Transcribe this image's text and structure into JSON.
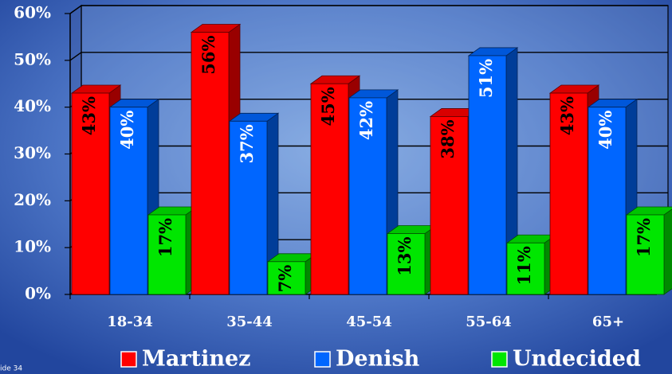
{
  "chart_data": {
    "type": "bar",
    "categories": [
      "18-34",
      "35-44",
      "45-54",
      "55-64",
      "65+"
    ],
    "series": [
      {
        "name": "Martinez",
        "color": "#ff0000",
        "values": [
          43,
          56,
          45,
          38,
          43
        ],
        "value_labels": [
          "43%",
          "56%",
          "45%",
          "38%",
          "43%"
        ]
      },
      {
        "name": "Denish",
        "color": "#0066ff",
        "values": [
          40,
          37,
          42,
          51,
          40
        ],
        "value_labels": [
          "40%",
          "37%",
          "42%",
          "51%",
          "40%"
        ]
      },
      {
        "name": "Undecided",
        "color": "#00e600",
        "values": [
          17,
          7,
          13,
          11,
          17
        ],
        "value_labels": [
          "17%",
          "7%",
          "13%",
          "11%",
          "17%"
        ]
      }
    ],
    "ylim": [
      0,
      60
    ],
    "yticks": [
      {
        "value": 0,
        "label": "0%"
      },
      {
        "value": 10,
        "label": "10%"
      },
      {
        "value": 20,
        "label": "20%"
      },
      {
        "value": 30,
        "label": "30%"
      },
      {
        "value": 40,
        "label": "40%"
      },
      {
        "value": 50,
        "label": "50%"
      },
      {
        "value": 60,
        "label": "60%"
      }
    ],
    "grid": true,
    "legend": "bottom",
    "footer": "ide 34"
  }
}
